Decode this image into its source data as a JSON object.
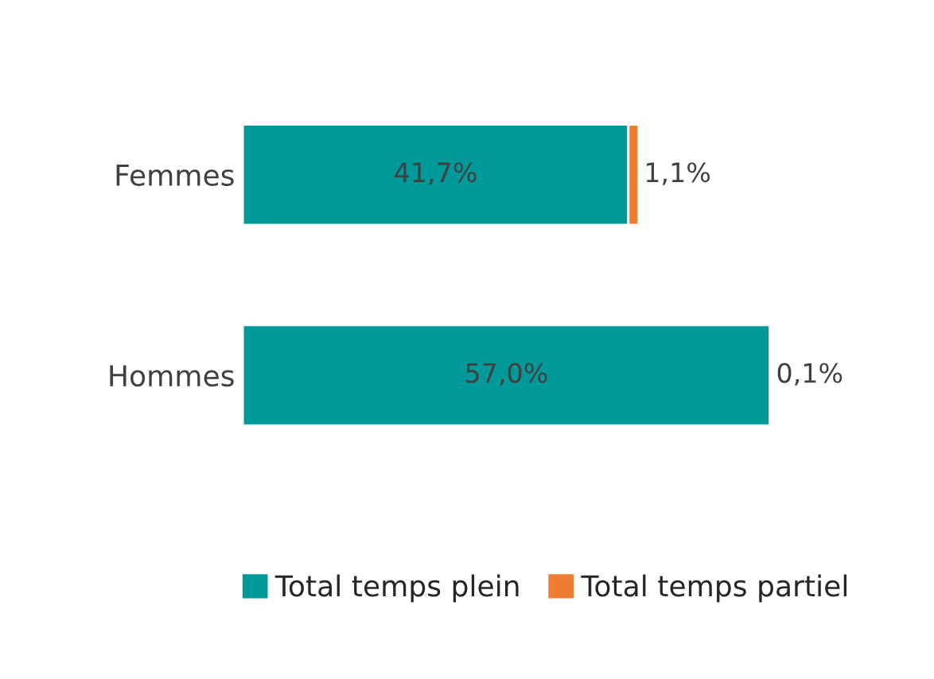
{
  "chart_data": {
    "type": "bar",
    "orientation": "horizontal",
    "stacked": true,
    "legend": "bottom",
    "tick_labels": "y",
    "categories": [
      "Femmes",
      "Hommes"
    ],
    "series": [
      {
        "name": "Total temps plein",
        "color": "#009999",
        "values": [
          41.7,
          57.0
        ],
        "value_labels": [
          "41,7%",
          "57,0%"
        ]
      },
      {
        "name": "Total temps partiel",
        "color": "#ed7d31",
        "values": [
          1.1,
          0.1
        ],
        "value_labels": [
          "1,1%",
          "0,1%"
        ]
      }
    ]
  }
}
